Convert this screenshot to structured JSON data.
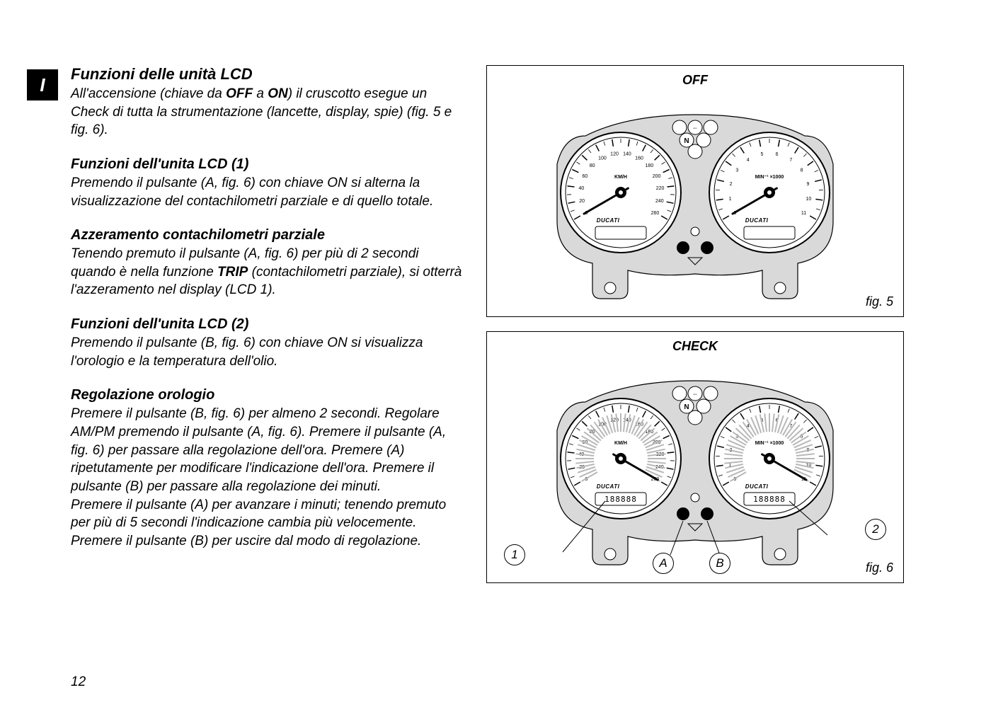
{
  "page": {
    "lang_tab": "I",
    "page_number": "12"
  },
  "headings": {
    "main": "Funzioni delle unità LCD",
    "lcd1": "Funzioni dell'unita LCD (1)",
    "trip_reset": "Azzeramento contachilometri parziale",
    "lcd2": "Funzioni dell'unita LCD (2)",
    "clock": "Regolazione orologio"
  },
  "paragraphs": {
    "intro_pre": "All'accensione (chiave da ",
    "intro_off": "OFF",
    "intro_mid": " a ",
    "intro_on": "ON",
    "intro_post": ") il cruscotto esegue un Check di tutta la strumentazione (lancette, display, spie) (fig. 5 e fig. 6).",
    "lcd1": "Premendo il pulsante (A, fig. 6) con chiave ON si alterna la visualizzazione del contachilometri parziale e di quello totale.",
    "trip_pre": "Tenendo premuto il pulsante (A, fig. 6) per più di 2 secondi quando è nella funzione ",
    "trip_bold": "TRIP",
    "trip_post": " (contachilometri parziale), si otterrà l'azzeramento nel display (LCD 1).",
    "lcd2": "Premendo il pulsante (B, fig. 6) con chiave ON si visualizza l'orologio e la temperatura dell'olio.",
    "clock": "Premere il pulsante (B, fig. 6) per almeno 2 secondi. Regolare AM/PM premendo il pulsante (A, fig. 6). Premere il pulsante (A, fig. 6) per passare alla regolazione dell'ora. Premere (A) ripetutamente per modificare l'indicazione dell'ora. Premere il pulsante (B) per passare alla regolazione dei minuti.",
    "clock2": "Premere il pulsante (A) per avanzare i minuti; tenendo premuto per più di 5 secondi l'indicazione cambia più velocemente. Premere il pulsante (B) per uscire dal modo di regolazione."
  },
  "figures": {
    "fig5": {
      "title": "OFF",
      "caption": "fig. 5"
    },
    "fig6": {
      "title": "CHECK",
      "caption": "fig. 6"
    }
  },
  "callouts": {
    "c1": "1",
    "cA": "A",
    "cB": "B",
    "c2": "2"
  },
  "gauge": {
    "speedo": {
      "unit": "KM/H",
      "brand": "DUCATI",
      "ticks": [
        "0",
        "20",
        "40",
        "60",
        "80",
        "100",
        "120",
        "140",
        "160",
        "180",
        "200",
        "220",
        "240",
        "260"
      ]
    },
    "tach": {
      "unit": "MIN⁻¹ ×1000",
      "brand": "DUCATI",
      "ticks": [
        "0",
        "1",
        "2",
        "3",
        "4",
        "5",
        "6",
        "7",
        "8",
        "9",
        "10",
        "11"
      ]
    },
    "lcd_text": "188888",
    "indicators": [
      "N"
    ],
    "colors": {
      "face": "#ffffff",
      "ring": "#000000",
      "body": "#d9d9d9",
      "needle": "#000000",
      "check_sweep": "#b8b8b8"
    }
  }
}
